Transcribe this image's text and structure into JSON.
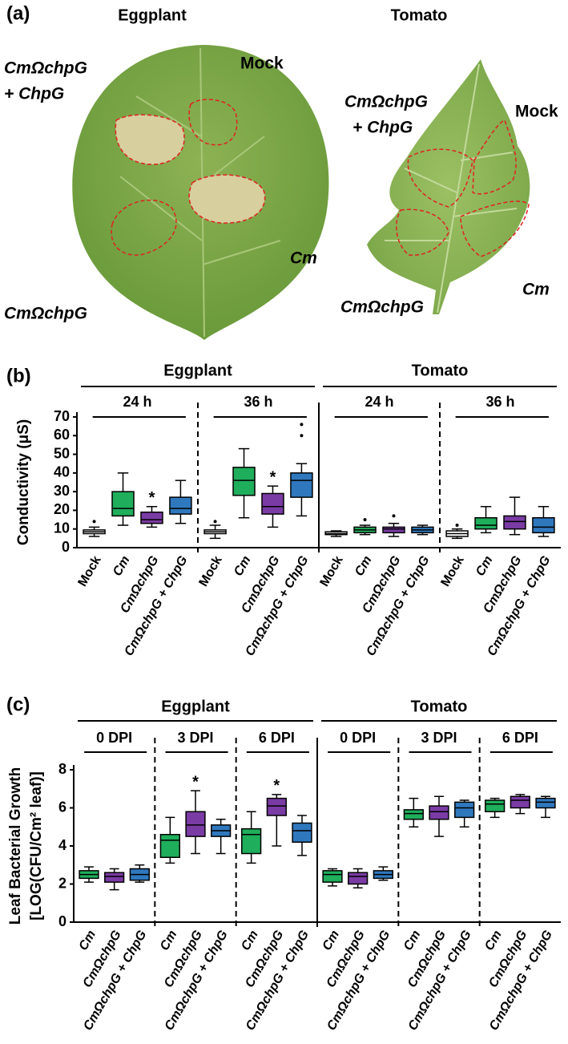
{
  "photo_panel": {
    "label": "(a)",
    "leaves": [
      {
        "title": "Eggplant",
        "labels": [
          "CmΩchpG",
          "+ ChpG",
          "Mock",
          "Cm",
          "CmΩchpG"
        ]
      },
      {
        "title": "Tomato",
        "labels": [
          "CmΩchpG",
          "+ ChpG",
          "Mock",
          "Cm",
          "CmΩchpG"
        ]
      }
    ]
  },
  "chart_data": [
    {
      "type": "box",
      "panel_label": "(b)",
      "ylabel": [
        "Conductivity (μS)"
      ],
      "ylim": [
        0,
        70
      ],
      "yticks": [
        0,
        10,
        20,
        30,
        40,
        50,
        60,
        70
      ],
      "categories": [
        "Mock",
        "Cm",
        "CmΩchpG",
        "CmΩchpG + ChpG"
      ],
      "category_italic": [
        false,
        true,
        true,
        true
      ],
      "colors": [
        "#ffffff",
        "#1fae5b",
        "#7a3ba4",
        "#2f78be"
      ],
      "species": [
        {
          "name": "Eggplant",
          "groups": [
            {
              "label": "24 h",
              "boxes": [
                {
                  "min": 6,
                  "q1": 7.5,
                  "median": 8.5,
                  "q3": 9.5,
                  "max": 11,
                  "outliers": [
                    14
                  ]
                },
                {
                  "min": 12,
                  "q1": 17,
                  "median": 21,
                  "q3": 30,
                  "max": 40
                },
                {
                  "min": 11,
                  "q1": 13,
                  "median": 15,
                  "q3": 19,
                  "max": 22,
                  "annotation": "*"
                },
                {
                  "min": 13,
                  "q1": 18,
                  "median": 21,
                  "q3": 27,
                  "max": 36
                }
              ]
            },
            {
              "label": "36 h",
              "boxes": [
                {
                  "min": 5,
                  "q1": 7.5,
                  "median": 8.5,
                  "q3": 9.5,
                  "max": 12,
                  "outliers": [
                    14
                  ]
                },
                {
                  "min": 16,
                  "q1": 28,
                  "median": 36,
                  "q3": 43,
                  "max": 53
                },
                {
                  "min": 11,
                  "q1": 18,
                  "median": 22,
                  "q3": 29,
                  "max": 33,
                  "annotation": "*"
                },
                {
                  "min": 17,
                  "q1": 27,
                  "median": 36,
                  "q3": 40,
                  "max": 45,
                  "outliers": [
                    60,
                    66
                  ]
                }
              ]
            }
          ]
        },
        {
          "name": "Tomato",
          "groups": [
            {
              "label": "24 h",
              "boxes": [
                {
                  "min": 6,
                  "q1": 7,
                  "median": 7.5,
                  "q3": 8.5,
                  "max": 9
                },
                {
                  "min": 7,
                  "q1": 8,
                  "median": 9.5,
                  "q3": 11,
                  "max": 12,
                  "outliers": [
                    15
                  ]
                },
                {
                  "min": 6,
                  "q1": 8,
                  "median": 10,
                  "q3": 11,
                  "max": 13,
                  "outliers": [
                    17
                  ]
                },
                {
                  "min": 7,
                  "q1": 8,
                  "median": 9.5,
                  "q3": 11,
                  "max": 12
                }
              ]
            },
            {
              "label": "36 h",
              "boxes": [
                {
                  "min": 5,
                  "q1": 6,
                  "median": 7.5,
                  "q3": 9,
                  "max": 10,
                  "outliers": [
                    12
                  ]
                },
                {
                  "min": 8,
                  "q1": 10,
                  "median": 12,
                  "q3": 16,
                  "max": 22
                },
                {
                  "min": 7,
                  "q1": 10,
                  "median": 14,
                  "q3": 17,
                  "max": 27
                },
                {
                  "min": 6,
                  "q1": 8,
                  "median": 11,
                  "q3": 16,
                  "max": 22
                }
              ]
            }
          ]
        }
      ]
    },
    {
      "type": "box",
      "panel_label": "(c)",
      "ylabel": [
        "Leaf Bacterial Growth",
        "[LOG(CFU/Cm² leaf)]"
      ],
      "ylim": [
        0,
        8
      ],
      "yticks": [
        0,
        2,
        4,
        6,
        8
      ],
      "categories": [
        "Cm",
        "CmΩchpG",
        "CmΩchpG + ChpG"
      ],
      "category_italic": [
        true,
        true,
        true
      ],
      "colors": [
        "#1fae5b",
        "#7a3ba4",
        "#2f78be"
      ],
      "species": [
        {
          "name": "Eggplant",
          "groups": [
            {
              "label": "0 DPI",
              "boxes": [
                {
                  "min": 2.1,
                  "q1": 2.3,
                  "median": 2.5,
                  "q3": 2.7,
                  "max": 2.9
                },
                {
                  "min": 1.7,
                  "q1": 2.1,
                  "median": 2.4,
                  "q3": 2.6,
                  "max": 2.8
                },
                {
                  "min": 2.1,
                  "q1": 2.2,
                  "median": 2.5,
                  "q3": 2.8,
                  "max": 3.0
                }
              ]
            },
            {
              "label": "3 DPI",
              "boxes": [
                {
                  "min": 3.1,
                  "q1": 3.4,
                  "median": 4.3,
                  "q3": 4.6,
                  "max": 5.5
                },
                {
                  "min": 3.6,
                  "q1": 4.5,
                  "median": 5.1,
                  "q3": 5.8,
                  "max": 6.9,
                  "annotation": "*"
                },
                {
                  "min": 3.6,
                  "q1": 4.5,
                  "median": 4.8,
                  "q3": 5.1,
                  "max": 5.4
                }
              ]
            },
            {
              "label": "6 DPI",
              "boxes": [
                {
                  "min": 3.1,
                  "q1": 3.6,
                  "median": 4.6,
                  "q3": 4.9,
                  "max": 5.8
                },
                {
                  "min": 4.0,
                  "q1": 5.6,
                  "median": 6.1,
                  "q3": 6.5,
                  "max": 6.7,
                  "annotation": "*"
                },
                {
                  "min": 3.5,
                  "q1": 4.2,
                  "median": 4.8,
                  "q3": 5.2,
                  "max": 5.6
                }
              ]
            }
          ]
        },
        {
          "name": "Tomato",
          "groups": [
            {
              "label": "0 DPI",
              "boxes": [
                {
                  "min": 1.9,
                  "q1": 2.1,
                  "median": 2.5,
                  "q3": 2.7,
                  "max": 2.8
                },
                {
                  "min": 1.8,
                  "q1": 2.0,
                  "median": 2.4,
                  "q3": 2.6,
                  "max": 2.8
                },
                {
                  "min": 2.2,
                  "q1": 2.3,
                  "median": 2.5,
                  "q3": 2.7,
                  "max": 2.9
                }
              ]
            },
            {
              "label": "3 DPI",
              "boxes": [
                {
                  "min": 5.0,
                  "q1": 5.4,
                  "median": 5.7,
                  "q3": 5.9,
                  "max": 6.5
                },
                {
                  "min": 4.5,
                  "q1": 5.4,
                  "median": 5.8,
                  "q3": 6.1,
                  "max": 6.6
                },
                {
                  "min": 5.0,
                  "q1": 5.5,
                  "median": 6.0,
                  "q3": 6.3,
                  "max": 6.4
                }
              ]
            },
            {
              "label": "6 DPI",
              "boxes": [
                {
                  "min": 5.5,
                  "q1": 5.8,
                  "median": 6.2,
                  "q3": 6.4,
                  "max": 6.5
                },
                {
                  "min": 5.7,
                  "q1": 6.0,
                  "median": 6.4,
                  "q3": 6.6,
                  "max": 6.7
                },
                {
                  "min": 5.5,
                  "q1": 6.0,
                  "median": 6.3,
                  "q3": 6.5,
                  "max": 6.6
                }
              ]
            }
          ]
        }
      ]
    }
  ]
}
